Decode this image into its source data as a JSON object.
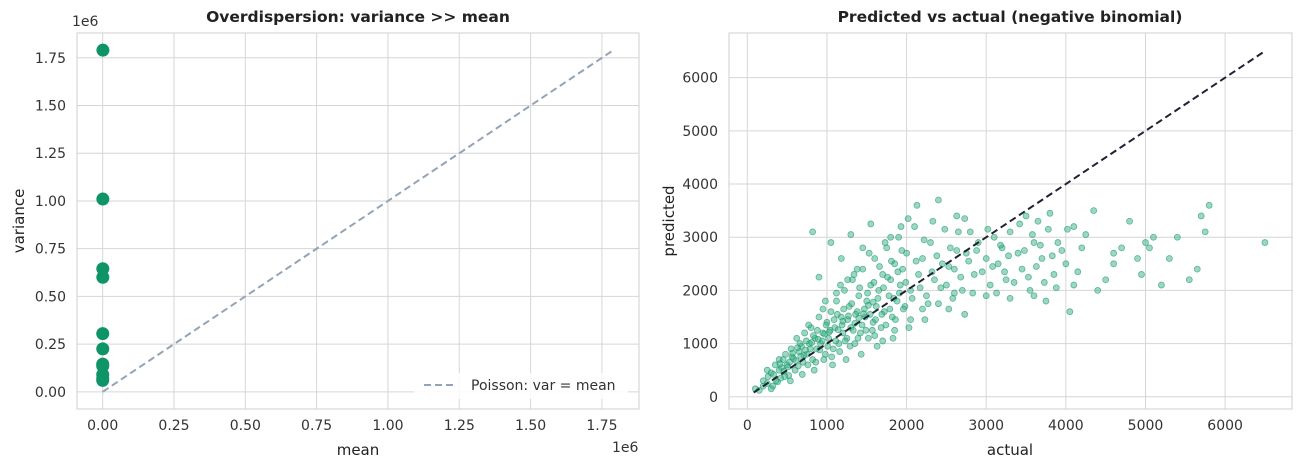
{
  "chart_data": [
    {
      "type": "scatter",
      "title": "Overdispersion: variance >> mean",
      "xlabel": "mean",
      "ylabel": "variance",
      "x_scale_label": "1e6",
      "y_scale_label": "1e6",
      "xlim": [
        -0.09,
        1.88
      ],
      "ylim": [
        -0.09,
        1.88
      ],
      "xticks": [
        0.0,
        0.25,
        0.5,
        0.75,
        1.0,
        1.25,
        1.5,
        1.75
      ],
      "xtick_labels": [
        "0.00",
        "0.25",
        "0.50",
        "0.75",
        "1.00",
        "1.25",
        "1.50",
        "1.75"
      ],
      "yticks": [
        0.0,
        0.25,
        0.5,
        0.75,
        1.0,
        1.25,
        1.5,
        1.75
      ],
      "ytick_labels": [
        "0.00",
        "0.25",
        "0.50",
        "0.75",
        "1.00",
        "1.25",
        "1.50",
        "1.75"
      ],
      "grid": true,
      "legend_position": "bottom-right",
      "colors": {
        "points": "#0e9467",
        "reference_line": "#94a3b8"
      },
      "points": [
        {
          "x": 0.0008,
          "y": 1.79
        },
        {
          "x": 0.0006,
          "y": 1.01
        },
        {
          "x": 0.0005,
          "y": 0.645
        },
        {
          "x": 0.0005,
          "y": 0.6
        },
        {
          "x": 0.0003,
          "y": 0.305
        },
        {
          "x": 0.0003,
          "y": 0.225
        },
        {
          "x": 0.0002,
          "y": 0.145
        },
        {
          "x": 0.0002,
          "y": 0.135
        },
        {
          "x": 0.0002,
          "y": 0.09
        },
        {
          "x": 0.0002,
          "y": 0.07
        },
        {
          "x": 0.0001,
          "y": 0.06
        }
      ],
      "reference_line": {
        "name": "Poisson: var = mean",
        "from": [
          0.0,
          0.0
        ],
        "to": [
          1.79,
          1.79
        ]
      }
    },
    {
      "type": "scatter",
      "title": "Predicted vs actual (negative binomial)",
      "xlabel": "actual",
      "ylabel": "predicted",
      "xlim": [
        -230,
        6840
      ],
      "ylim": [
        -230,
        6840
      ],
      "xticks": [
        0,
        1000,
        2000,
        3000,
        4000,
        5000,
        6000
      ],
      "xtick_labels": [
        "0",
        "1000",
        "2000",
        "3000",
        "4000",
        "5000",
        "6000"
      ],
      "yticks": [
        0,
        1000,
        2000,
        3000,
        4000,
        5000,
        6000
      ],
      "ytick_labels": [
        "0",
        "1000",
        "2000",
        "3000",
        "4000",
        "5000",
        "6000"
      ],
      "grid": true,
      "colors": {
        "points": "#3bb083",
        "points_edge": "#0e9467",
        "reference_line": "#1f2233"
      },
      "reference_line": {
        "from": [
          80,
          80
        ],
        "to": [
          6500,
          6500
        ]
      },
      "points": [
        [
          100,
          150
        ],
        [
          150,
          120
        ],
        [
          200,
          300
        ],
        [
          250,
          250
        ],
        [
          300,
          450
        ],
        [
          320,
          200
        ],
        [
          350,
          600
        ],
        [
          400,
          500
        ],
        [
          420,
          350
        ],
        [
          450,
          700
        ],
        [
          480,
          800
        ],
        [
          500,
          600
        ],
        [
          520,
          400
        ],
        [
          550,
          900
        ],
        [
          560,
          750
        ],
        [
          600,
          500
        ],
        [
          620,
          1100
        ],
        [
          650,
          850
        ],
        [
          680,
          950
        ],
        [
          700,
          650
        ],
        [
          720,
          1200
        ],
        [
          750,
          800
        ],
        [
          780,
          1000
        ],
        [
          800,
          1300
        ],
        [
          820,
          700
        ],
        [
          850,
          1100
        ],
        [
          870,
          900
        ],
        [
          900,
          1500
        ],
        [
          920,
          1000
        ],
        [
          950,
          1200
        ],
        [
          980,
          800
        ],
        [
          1000,
          1400
        ],
        [
          1020,
          1100
        ],
        [
          1050,
          1600
        ],
        [
          1080,
          900
        ],
        [
          1100,
          1300
        ],
        [
          1120,
          1800
        ],
        [
          1150,
          1000
        ],
        [
          1180,
          1500
        ],
        [
          1200,
          1200
        ],
        [
          1220,
          2000
        ],
        [
          1250,
          1100
        ],
        [
          1280,
          1700
        ],
        [
          1300,
          1300
        ],
        [
          1320,
          2200
        ],
        [
          1350,
          1000
        ],
        [
          1380,
          1600
        ],
        [
          1400,
          1900
        ],
        [
          1420,
          1200
        ],
        [
          1450,
          2400
        ],
        [
          1480,
          1500
        ],
        [
          1500,
          1800
        ],
        [
          1520,
          1100
        ],
        [
          1550,
          2100
        ],
        [
          1580,
          1400
        ],
        [
          1600,
          2600
        ],
        [
          1620,
          1700
        ],
        [
          1650,
          2000
        ],
        [
          1680,
          1300
        ],
        [
          1700,
          2300
        ],
        [
          1720,
          1600
        ],
        [
          1750,
          2800
        ],
        [
          1780,
          1900
        ],
        [
          1800,
          2200
        ],
        [
          1820,
          1500
        ],
        [
          1850,
          2500
        ],
        [
          1880,
          1800
        ],
        [
          1900,
          3000
        ],
        [
          1920,
          2100
        ],
        [
          1950,
          2400
        ],
        [
          1980,
          1700
        ],
        [
          2000,
          2700
        ],
        [
          2050,
          2000
        ],
        [
          2100,
          3200
        ],
        [
          2150,
          2300
        ],
        [
          2200,
          2600
        ],
        [
          2250,
          1900
        ],
        [
          2300,
          2900
        ],
        [
          2350,
          2200
        ],
        [
          2400,
          3700
        ],
        [
          2450,
          2500
        ],
        [
          2500,
          2100
        ],
        [
          2550,
          2800
        ],
        [
          2600,
          2400
        ],
        [
          2650,
          3100
        ],
        [
          2700,
          2000
        ],
        [
          2750,
          2700
        ],
        [
          2800,
          3100
        ],
        [
          2850,
          2300
        ],
        [
          2900,
          2900
        ],
        [
          3000,
          2600
        ],
        [
          3050,
          2100
        ],
        [
          3100,
          3000
        ],
        [
          3150,
          2500
        ],
        [
          3200,
          2800
        ],
        [
          3250,
          2200
        ],
        [
          3300,
          3100
        ],
        [
          3400,
          2700
        ],
        [
          3450,
          2400
        ],
        [
          3500,
          3400
        ],
        [
          3550,
          2000
        ],
        [
          3600,
          2900
        ],
        [
          3650,
          3300
        ],
        [
          3700,
          2600
        ],
        [
          3750,
          1800
        ],
        [
          3800,
          3450
        ],
        [
          3850,
          2300
        ],
        [
          3900,
          2900
        ],
        [
          4000,
          2500
        ],
        [
          4050,
          1600
        ],
        [
          4100,
          3200
        ],
        [
          4200,
          2800
        ],
        [
          4350,
          3500
        ],
        [
          4400,
          2000
        ],
        [
          4500,
          2200
        ],
        [
          4700,
          2800
        ],
        [
          4800,
          3300
        ],
        [
          4900,
          2600
        ],
        [
          5000,
          2900
        ],
        [
          5050,
          2800
        ],
        [
          5200,
          2100
        ],
        [
          5400,
          3000
        ],
        [
          5550,
          2200
        ],
        [
          5700,
          3400
        ],
        [
          5750,
          3100
        ],
        [
          5800,
          3600
        ],
        [
          6500,
          2900
        ],
        [
          250,
          500
        ],
        [
          380,
          280
        ],
        [
          430,
          550
        ],
        [
          470,
          380
        ],
        [
          530,
          650
        ],
        [
          580,
          720
        ],
        [
          640,
          580
        ],
        [
          660,
          1000
        ],
        [
          710,
          780
        ],
        [
          740,
          1050
        ],
        [
          760,
          600
        ],
        [
          790,
          900
        ],
        [
          830,
          1150
        ],
        [
          860,
          650
        ],
        [
          880,
          1250
        ],
        [
          910,
          880
        ],
        [
          940,
          1050
        ],
        [
          960,
          700
        ],
        [
          990,
          1350
        ],
        [
          1010,
          950
        ],
        [
          1040,
          1250
        ],
        [
          1060,
          750
        ],
        [
          1090,
          1450
        ],
        [
          1110,
          1050
        ],
        [
          1130,
          1550
        ],
        [
          1160,
          850
        ],
        [
          1190,
          1350
        ],
        [
          1210,
          1650
        ],
        [
          1230,
          1050
        ],
        [
          1260,
          1450
        ],
        [
          1290,
          950
        ],
        [
          1310,
          1750
        ],
        [
          1330,
          1250
        ],
        [
          1360,
          1550
        ],
        [
          1390,
          1100
        ],
        [
          1410,
          2050
        ],
        [
          1440,
          1350
        ],
        [
          1470,
          1650
        ],
        [
          1490,
          1250
        ],
        [
          1510,
          1950
        ],
        [
          1540,
          1550
        ],
        [
          1570,
          1250
        ],
        [
          1590,
          2150
        ],
        [
          1610,
          1450
        ],
        [
          1640,
          1850
        ],
        [
          1660,
          2450
        ],
        [
          1690,
          1550
        ],
        [
          1710,
          2050
        ],
        [
          1740,
          1350
        ],
        [
          1760,
          2250
        ],
        [
          1790,
          1650
        ],
        [
          1810,
          2550
        ],
        [
          1840,
          1850
        ],
        [
          1860,
          1450
        ],
        [
          1890,
          2350
        ],
        [
          1910,
          1950
        ],
        [
          1940,
          2750
        ],
        [
          1960,
          1650
        ],
        [
          1990,
          2150
        ],
        [
          2020,
          3350
        ],
        [
          2070,
          1850
        ],
        [
          2120,
          2550
        ],
        [
          2170,
          2050
        ],
        [
          2220,
          2950
        ],
        [
          2270,
          1750
        ],
        [
          2320,
          2350
        ],
        [
          2380,
          2650
        ],
        [
          2430,
          2050
        ],
        [
          2480,
          3150
        ],
        [
          2530,
          2450
        ],
        [
          2580,
          1850
        ],
        [
          2630,
          2750
        ],
        [
          2680,
          2250
        ],
        [
          2730,
          3350
        ],
        [
          2780,
          2550
        ],
        [
          2830,
          1950
        ],
        [
          2880,
          2750
        ],
        [
          2950,
          2350
        ],
        [
          3020,
          3150
        ],
        [
          3080,
          2450
        ],
        [
          3130,
          1950
        ],
        [
          3180,
          2850
        ],
        [
          3230,
          2350
        ],
        [
          3280,
          2650
        ],
        [
          3350,
          2150
        ],
        [
          3420,
          3250
        ],
        [
          3480,
          2750
        ],
        [
          3530,
          2250
        ],
        [
          3580,
          3050
        ],
        [
          3630,
          2450
        ],
        [
          3680,
          2850
        ],
        [
          3730,
          2150
        ],
        [
          3780,
          3150
        ],
        [
          3830,
          2650
        ],
        [
          3880,
          2050
        ],
        [
          3950,
          2750
        ],
        [
          4020,
          3150
        ],
        [
          4150,
          2350
        ],
        [
          4250,
          3050
        ],
        [
          4600,
          2700
        ],
        [
          4950,
          2300
        ],
        [
          5100,
          3000
        ],
        [
          5300,
          2600
        ],
        [
          5650,
          2400
        ],
        [
          300,
          150
        ],
        [
          400,
          700
        ],
        [
          540,
          300
        ],
        [
          690,
          420
        ],
        [
          770,
          1350
        ],
        [
          840,
          500
        ],
        [
          950,
          1650
        ],
        [
          1070,
          600
        ],
        [
          1170,
          2100
        ],
        [
          1240,
          700
        ],
        [
          1340,
          2300
        ],
        [
          1430,
          800
        ],
        [
          1530,
          2700
        ],
        [
          1630,
          950
        ],
        [
          1730,
          2900
        ],
        [
          1830,
          1100
        ],
        [
          1930,
          3200
        ],
        [
          2030,
          1300
        ],
        [
          2130,
          3600
        ],
        [
          2230,
          1450
        ],
        [
          2330,
          3300
        ],
        [
          2530,
          1650
        ],
        [
          2630,
          3400
        ],
        [
          2730,
          1550
        ],
        [
          820,
          3100
        ],
        [
          1050,
          2900
        ],
        [
          1300,
          3050
        ],
        [
          1550,
          3250
        ],
        [
          1800,
          3000
        ],
        [
          900,
          2250
        ],
        [
          1180,
          2600
        ],
        [
          1450,
          2800
        ],
        [
          980,
          1800
        ],
        [
          1120,
          1950
        ],
        [
          1260,
          2200
        ],
        [
          1380,
          2400
        ],
        [
          1600,
          1150
        ],
        [
          1700,
          1050
        ],
        [
          1850,
          1250
        ],
        [
          2050,
          1450
        ],
        [
          2200,
          1650
        ],
        [
          2400,
          1750
        ],
        [
          2600,
          1950
        ],
        [
          3000,
          1900
        ],
        [
          3300,
          1850
        ],
        [
          3600,
          1900
        ],
        [
          4100,
          2100
        ],
        [
          4600,
          2500
        ],
        [
          200,
          200
        ],
        [
          260,
          380
        ],
        [
          330,
          420
        ],
        [
          360,
          300
        ],
        [
          410,
          620
        ],
        [
          460,
          480
        ],
        [
          510,
          560
        ],
        [
          570,
          820
        ],
        [
          610,
          680
        ],
        [
          630,
          920
        ],
        [
          670,
          760
        ],
        [
          730,
          880
        ],
        [
          810,
          1020
        ],
        [
          890,
          1080
        ],
        [
          970,
          1180
        ],
        [
          1030,
          1220
        ],
        [
          1140,
          1260
        ],
        [
          1200,
          1420
        ],
        [
          1270,
          1520
        ],
        [
          1350,
          1380
        ],
        [
          1400,
          1480
        ],
        [
          1460,
          1560
        ],
        [
          1520,
          1720
        ],
        [
          1580,
          1780
        ]
      ]
    }
  ]
}
